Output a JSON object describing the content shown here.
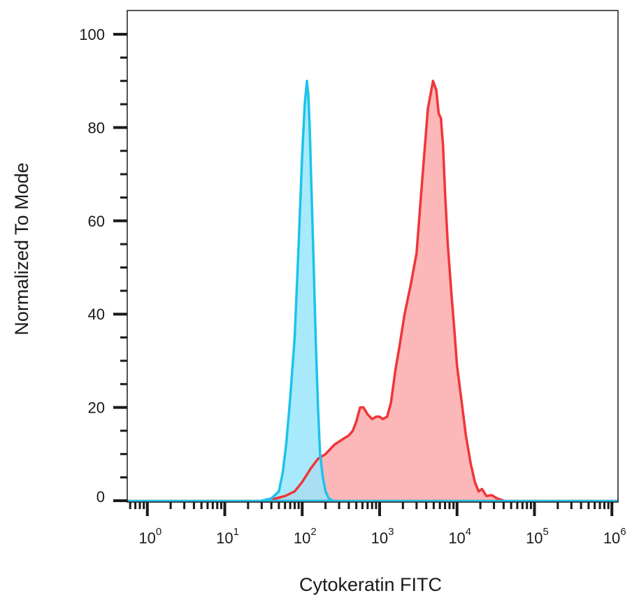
{
  "chart_data": {
    "type": "area",
    "title": "",
    "xlabel": "Cytokeratin FITC",
    "ylabel": "Normalized To Mode",
    "x_scale": "log",
    "xlim": [
      0.55,
      1200000
    ],
    "ylim": [
      0,
      100
    ],
    "y_ticks": [
      "0",
      "20",
      "40",
      "60",
      "80",
      "100"
    ],
    "x_ticks": [
      {
        "base": "10",
        "exp": "0",
        "value": 1
      },
      {
        "base": "10",
        "exp": "1",
        "value": 10
      },
      {
        "base": "10",
        "exp": "2",
        "value": 100
      },
      {
        "base": "10",
        "exp": "3",
        "value": 1000
      },
      {
        "base": "10",
        "exp": "4",
        "value": 10000
      },
      {
        "base": "10",
        "exp": "5",
        "value": 100000
      },
      {
        "base": "10",
        "exp": "6",
        "value": 1000000
      }
    ],
    "grid": false,
    "series": [
      {
        "color": "#f0353a",
        "fill": "#fbaaab",
        "x": [
          35,
          60,
          80,
          100,
          130,
          160,
          200,
          260,
          320,
          400,
          450,
          500,
          560,
          620,
          700,
          800,
          900,
          1000,
          1100,
          1250,
          1400,
          1600,
          1800,
          2100,
          2500,
          3000,
          3600,
          4200,
          4900,
          5400,
          5800,
          6200,
          6600,
          7000,
          7600,
          8400,
          9200,
          10000,
          11500,
          13000,
          15000,
          17000,
          19000,
          21000,
          24000,
          28000,
          33000,
          40000
        ],
        "y": [
          0,
          1,
          2,
          4,
          7,
          9,
          10,
          12,
          13,
          14,
          15,
          17,
          20,
          20,
          18.5,
          17.5,
          18,
          18,
          17.5,
          18,
          21,
          28,
          33,
          40,
          46,
          53,
          70,
          84,
          90,
          88,
          83,
          82,
          76,
          66,
          55,
          45,
          37,
          29,
          21,
          14,
          8,
          4,
          2,
          2.5,
          1,
          1.2,
          0.5,
          0
        ]
      },
      {
        "color": "#1cc3ec",
        "fill": "#99e6fb",
        "x": [
          30,
          40,
          50,
          56,
          62,
          70,
          80,
          90,
          100,
          108,
          115,
          120,
          125,
          130,
          140,
          150,
          160,
          170,
          185,
          200,
          220,
          250
        ],
        "y": [
          0,
          0.5,
          2,
          6,
          12,
          22,
          35,
          55,
          74,
          85,
          90,
          87,
          80,
          70,
          52,
          34,
          20,
          10,
          5,
          2,
          0.5,
          0
        ]
      }
    ]
  }
}
